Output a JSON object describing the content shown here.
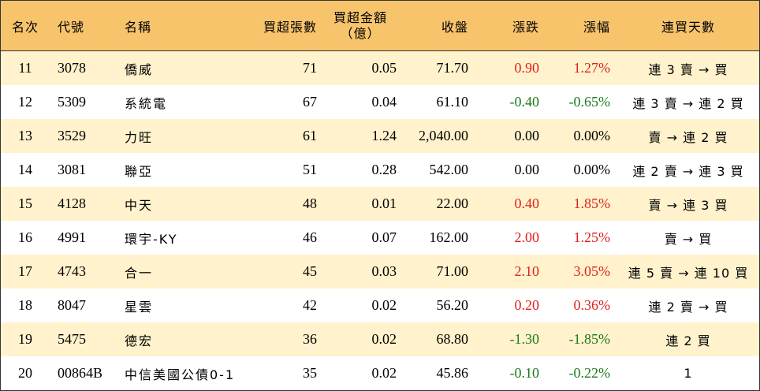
{
  "header": {
    "rank": "名次",
    "code": "代號",
    "name": "名稱",
    "net_buy_lots": "買超張數",
    "net_buy_amount_line1": "買超金額",
    "net_buy_amount_line2": "（億）",
    "close": "收盤",
    "change": "漲跌",
    "change_pct": "漲幅",
    "consecutive_days": "連買天數"
  },
  "rows": [
    {
      "rank": "11",
      "code": "3078",
      "name": "僑威",
      "lots": "71",
      "amount": "0.05",
      "close": "71.70",
      "change": "0.90",
      "pct": "1.27%",
      "days": "連 3 賣 → 買",
      "dir": "up"
    },
    {
      "rank": "12",
      "code": "5309",
      "name": "系統電",
      "lots": "67",
      "amount": "0.04",
      "close": "61.10",
      "change": "-0.40",
      "pct": "-0.65%",
      "days": "連 3 賣 → 連 2 買",
      "dir": "down"
    },
    {
      "rank": "13",
      "code": "3529",
      "name": "力旺",
      "lots": "61",
      "amount": "1.24",
      "close": "2,040.00",
      "change": "0.00",
      "pct": "0.00%",
      "days": "賣 → 連 2 買",
      "dir": "flat"
    },
    {
      "rank": "14",
      "code": "3081",
      "name": "聯亞",
      "lots": "51",
      "amount": "0.28",
      "close": "542.00",
      "change": "0.00",
      "pct": "0.00%",
      "days": "連 2 賣 → 連 3 買",
      "dir": "flat"
    },
    {
      "rank": "15",
      "code": "4128",
      "name": "中天",
      "lots": "48",
      "amount": "0.01",
      "close": "22.00",
      "change": "0.40",
      "pct": "1.85%",
      "days": "賣 → 連 3 買",
      "dir": "up"
    },
    {
      "rank": "16",
      "code": "4991",
      "name": "環宇-KY",
      "lots": "46",
      "amount": "0.07",
      "close": "162.00",
      "change": "2.00",
      "pct": "1.25%",
      "days": "賣 → 買",
      "dir": "up"
    },
    {
      "rank": "17",
      "code": "4743",
      "name": "合一",
      "lots": "45",
      "amount": "0.03",
      "close": "71.00",
      "change": "2.10",
      "pct": "3.05%",
      "days": "連 5 賣 → 連 10 買",
      "dir": "up"
    },
    {
      "rank": "18",
      "code": "8047",
      "name": "星雲",
      "lots": "42",
      "amount": "0.02",
      "close": "56.20",
      "change": "0.20",
      "pct": "0.36%",
      "days": "連 2 賣 → 買",
      "dir": "up"
    },
    {
      "rank": "19",
      "code": "5475",
      "name": "德宏",
      "lots": "36",
      "amount": "0.02",
      "close": "68.80",
      "change": "-1.30",
      "pct": "-1.85%",
      "days": "連 2 買",
      "dir": "down"
    },
    {
      "rank": "20",
      "code": "00864B",
      "name": "中信美國公債0-1",
      "lots": "35",
      "amount": "0.02",
      "close": "45.86",
      "change": "-0.10",
      "pct": "-0.22%",
      "days": "1",
      "dir": "down"
    }
  ],
  "colors": {
    "header_bg": "#f7c46c",
    "stripe_bg": "#fff2cc",
    "up": "#e02020",
    "down": "#1a7a1a"
  }
}
